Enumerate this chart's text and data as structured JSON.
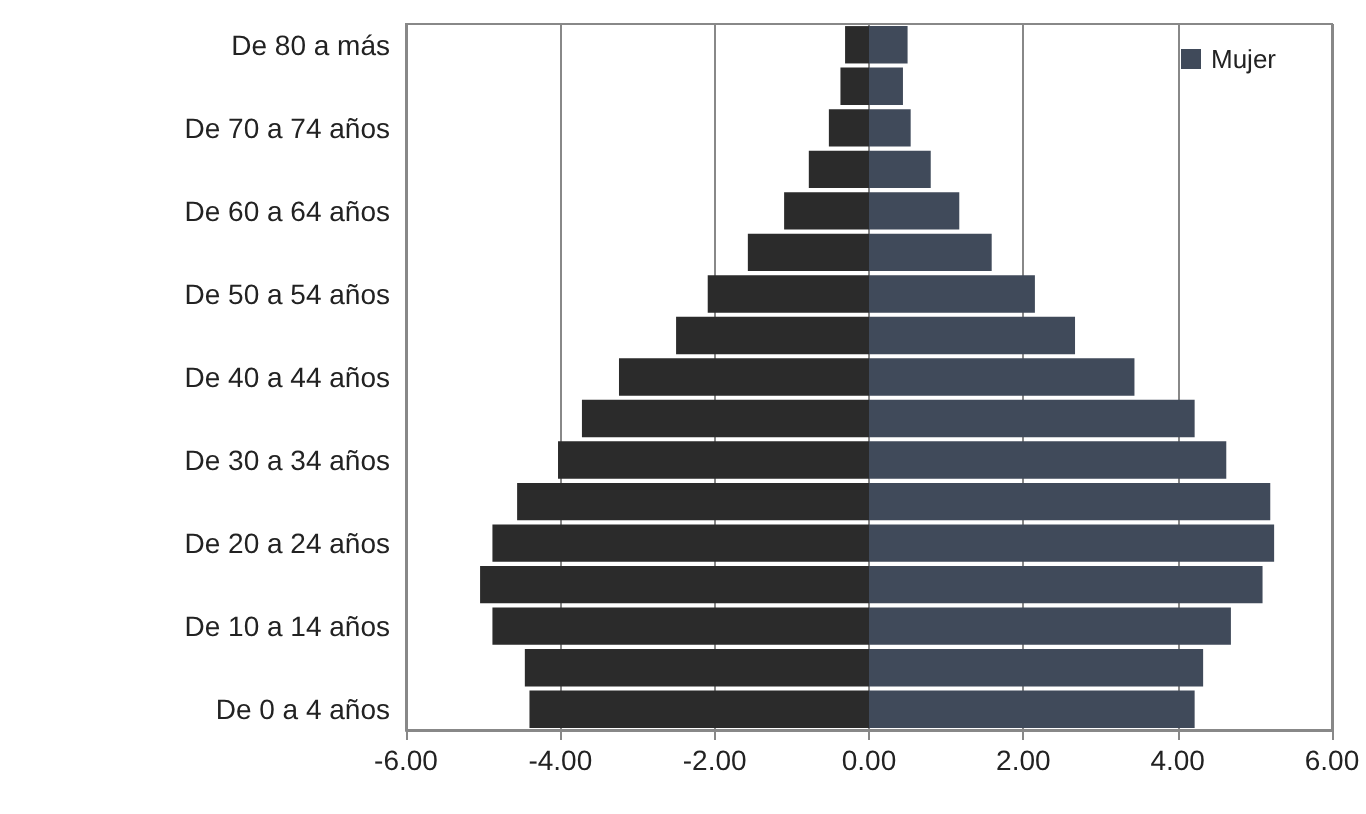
{
  "chart_data": {
    "type": "bar",
    "orientation": "horizontal",
    "categories": [
      "De 80 a más",
      null,
      "De 70 a 74 años",
      null,
      "De 60 a 64 años",
      null,
      "De 50 a 54 años",
      null,
      "De 40 a 44 años",
      null,
      "De 30 a 34 años",
      null,
      "De 20 a 24 años",
      null,
      "De 10 a 14 años",
      null,
      "De 0 a 4 años"
    ],
    "series": [
      {
        "color": "#2b2b2b",
        "values": [
          -0.31,
          -0.37,
          -0.52,
          -0.78,
          -1.1,
          -1.57,
          -2.09,
          -2.5,
          -3.24,
          -3.72,
          -4.03,
          -4.56,
          -4.88,
          -5.04,
          -4.88,
          -4.46,
          -4.4
        ]
      },
      {
        "name": "Mujer",
        "color": "#404a5a",
        "values": [
          0.5,
          0.44,
          0.54,
          0.8,
          1.17,
          1.59,
          2.15,
          2.67,
          3.44,
          4.22,
          4.63,
          5.2,
          5.25,
          5.1,
          4.69,
          4.33,
          4.22
        ]
      }
    ],
    "xlim": [
      -6,
      6
    ],
    "xticks": [
      {
        "value": -6,
        "label": "-6.00"
      },
      {
        "value": -4,
        "label": "-4.00"
      },
      {
        "value": -2,
        "label": "-2.00"
      },
      {
        "value": 0,
        "label": "0.00"
      },
      {
        "value": 2,
        "label": "2.00"
      },
      {
        "value": 4,
        "label": "4.00"
      },
      {
        "value": 6,
        "label": "6.00"
      }
    ],
    "grid": "x",
    "legend": "top right",
    "stacked": true
  }
}
